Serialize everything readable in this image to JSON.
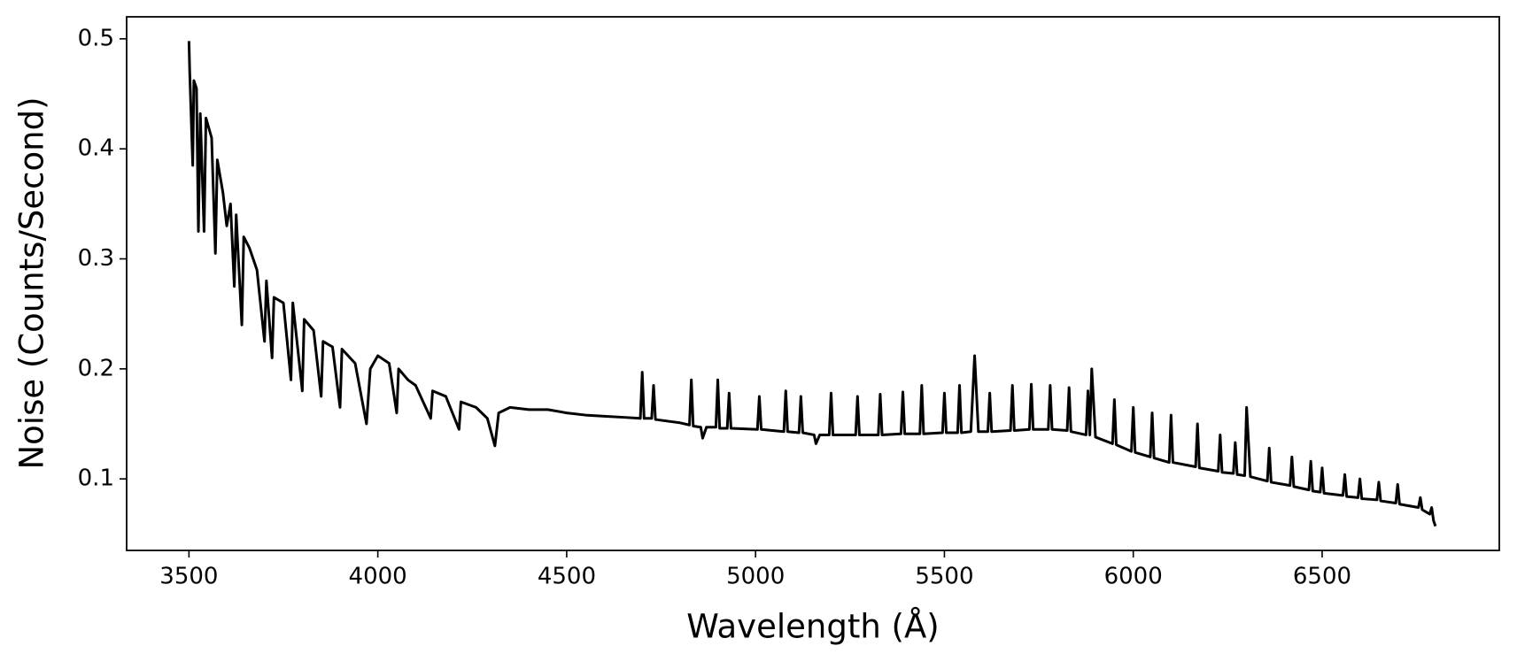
{
  "chart_data": {
    "type": "line",
    "xlabel": "Wavelength (Å)",
    "ylabel": "Noise (Counts/Second)",
    "color": "#000000",
    "xlim": [
      3335,
      6969
    ],
    "ylim": [
      0.035,
      0.52
    ],
    "xticks": [
      3500,
      4000,
      4500,
      5000,
      5500,
      6000,
      6500
    ],
    "yticks": [
      0.1,
      0.2,
      0.3,
      0.4,
      0.5
    ],
    "x": [
      3500,
      3502,
      3510,
      3513,
      3520,
      3525,
      3530,
      3540,
      3545,
      3560,
      3570,
      3575,
      3590,
      3600,
      3610,
      3620,
      3625,
      3640,
      3645,
      3660,
      3680,
      3700,
      3705,
      3720,
      3725,
      3750,
      3770,
      3775,
      3800,
      3805,
      3830,
      3850,
      3855,
      3880,
      3900,
      3905,
      3940,
      3970,
      3980,
      4000,
      4030,
      4050,
      4055,
      4080,
      4100,
      4140,
      4145,
      4180,
      4215,
      4220,
      4260,
      4290,
      4310,
      4320,
      4350,
      4400,
      4450,
      4500,
      4550,
      4600,
      4650,
      4695,
      4700,
      4705,
      4725,
      4730,
      4735,
      4800,
      4825,
      4830,
      4835,
      4855,
      4860,
      4870,
      4895,
      4900,
      4905,
      4925,
      4930,
      4935,
      5005,
      5010,
      5015,
      5075,
      5080,
      5085,
      5115,
      5120,
      5125,
      5155,
      5160,
      5170,
      5195,
      5200,
      5205,
      5265,
      5270,
      5275,
      5325,
      5330,
      5335,
      5385,
      5390,
      5395,
      5435,
      5440,
      5445,
      5495,
      5500,
      5505,
      5535,
      5540,
      5545,
      5570,
      5580,
      5590,
      5615,
      5620,
      5625,
      5675,
      5680,
      5685,
      5725,
      5730,
      5735,
      5775,
      5780,
      5785,
      5825,
      5830,
      5835,
      5875,
      5880,
      5885,
      5890,
      5900,
      5945,
      5950,
      5955,
      5995,
      6000,
      6005,
      6045,
      6050,
      6055,
      6095,
      6100,
      6105,
      6165,
      6170,
      6175,
      6225,
      6230,
      6235,
      6265,
      6270,
      6275,
      6295,
      6300,
      6310,
      6355,
      6360,
      6365,
      6415,
      6420,
      6425,
      6465,
      6470,
      6475,
      6495,
      6500,
      6505,
      6555,
      6560,
      6565,
      6595,
      6600,
      6605,
      6645,
      6650,
      6655,
      6695,
      6700,
      6705,
      6755,
      6760,
      6765,
      6785,
      6790,
      6795,
      6800
    ],
    "values": [
      0.498,
      0.47,
      0.385,
      0.462,
      0.455,
      0.325,
      0.432,
      0.325,
      0.428,
      0.41,
      0.305,
      0.39,
      0.36,
      0.33,
      0.35,
      0.275,
      0.34,
      0.24,
      0.32,
      0.31,
      0.29,
      0.225,
      0.28,
      0.21,
      0.265,
      0.26,
      0.19,
      0.26,
      0.18,
      0.245,
      0.235,
      0.175,
      0.225,
      0.22,
      0.165,
      0.218,
      0.205,
      0.15,
      0.2,
      0.212,
      0.205,
      0.16,
      0.2,
      0.19,
      0.185,
      0.155,
      0.18,
      0.175,
      0.145,
      0.17,
      0.165,
      0.155,
      0.13,
      0.16,
      0.165,
      0.163,
      0.163,
      0.16,
      0.158,
      0.157,
      0.156,
      0.155,
      0.197,
      0.155,
      0.155,
      0.185,
      0.154,
      0.151,
      0.149,
      0.19,
      0.148,
      0.147,
      0.137,
      0.147,
      0.147,
      0.19,
      0.146,
      0.146,
      0.178,
      0.146,
      0.145,
      0.175,
      0.145,
      0.143,
      0.18,
      0.143,
      0.142,
      0.175,
      0.142,
      0.14,
      0.132,
      0.14,
      0.14,
      0.178,
      0.14,
      0.14,
      0.175,
      0.14,
      0.14,
      0.177,
      0.14,
      0.141,
      0.179,
      0.141,
      0.141,
      0.185,
      0.141,
      0.142,
      0.178,
      0.142,
      0.142,
      0.185,
      0.142,
      0.143,
      0.212,
      0.143,
      0.143,
      0.178,
      0.143,
      0.144,
      0.185,
      0.144,
      0.145,
      0.186,
      0.145,
      0.145,
      0.185,
      0.145,
      0.144,
      0.183,
      0.143,
      0.14,
      0.18,
      0.14,
      0.2,
      0.138,
      0.132,
      0.172,
      0.131,
      0.125,
      0.165,
      0.124,
      0.12,
      0.16,
      0.119,
      0.115,
      0.158,
      0.115,
      0.111,
      0.15,
      0.11,
      0.107,
      0.14,
      0.106,
      0.105,
      0.133,
      0.104,
      0.103,
      0.165,
      0.102,
      0.098,
      0.128,
      0.097,
      0.094,
      0.12,
      0.093,
      0.09,
      0.116,
      0.089,
      0.088,
      0.11,
      0.087,
      0.085,
      0.104,
      0.084,
      0.083,
      0.1,
      0.082,
      0.081,
      0.097,
      0.08,
      0.078,
      0.095,
      0.077,
      0.074,
      0.083,
      0.072,
      0.068,
      0.074,
      0.062,
      0.057
    ]
  }
}
